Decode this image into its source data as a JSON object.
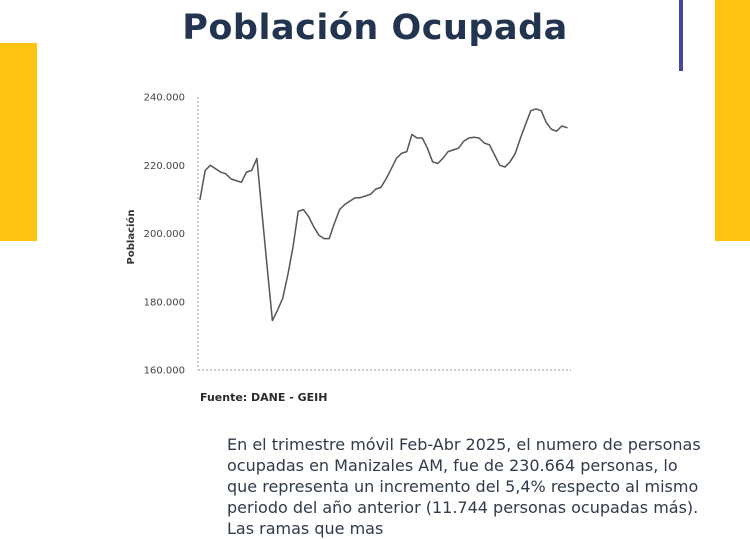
{
  "title": "Población Ocupada",
  "source": "Fuente: DANE - GEIH",
  "paragraph": "En el trimestre móvil Feb-Abr 2025, el numero de personas ocupadas en Manizales AM, fue de 230.664 personas, lo que representa un incremento del 5,4% respecto al mismo periodo del año anterior (11.744 personas ocupadas más). Las ramas que mas",
  "colors": {
    "accent_yellow": "#ffc20e",
    "title_navy": "#22344f",
    "accent_blue": "#3f48a8",
    "line": "#555555"
  },
  "chart_data": {
    "type": "line",
    "title": "",
    "xlabel": "",
    "ylabel": "Población",
    "ylim": [
      160000,
      240000
    ],
    "yticks": [
      160000,
      180000,
      200000,
      220000,
      240000
    ],
    "ytick_labels": [
      "160.000",
      "180.000",
      "200.000",
      "220.000",
      "240.000"
    ],
    "grid": false,
    "series": [
      {
        "values": [
          210000,
          218500,
          220000,
          219000,
          218000,
          217500,
          216000,
          215500,
          215000,
          218000,
          218500,
          222000,
          206000,
          190000,
          174500,
          177500,
          181000,
          188000,
          196000,
          206500,
          207000,
          205000,
          202000,
          199500,
          198500,
          198500,
          203000,
          207000,
          208500,
          209500,
          210500,
          210500,
          211000,
          211500,
          213000,
          213500,
          216000,
          219000,
          222000,
          223500,
          224000,
          229000,
          228000,
          228000,
          225000,
          221000,
          220500,
          222000,
          224000,
          224500,
          225000,
          227000,
          228000,
          228200,
          228000,
          226500,
          226000,
          223000,
          220000,
          219500,
          221000,
          223500,
          228000,
          232000,
          236000,
          236500,
          236000,
          232500,
          230500,
          230000,
          231500,
          231000
        ]
      }
    ]
  }
}
